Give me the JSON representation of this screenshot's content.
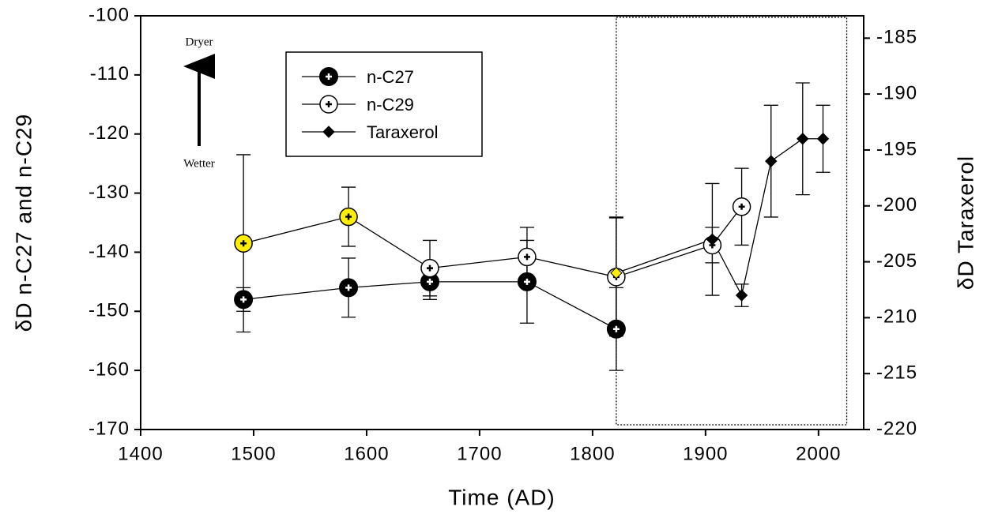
{
  "chart_data": {
    "type": "line",
    "xlabel": "Time (AD)",
    "ylabel": "δD n-C27 and n-C29",
    "y2label": "δD Taraxerol",
    "xlim": [
      1400,
      2040
    ],
    "xticks": [
      1400,
      1500,
      1600,
      1700,
      1800,
      1900,
      2000
    ],
    "ylim": [
      -170,
      -100
    ],
    "yticks": [
      -170,
      -160,
      -150,
      -140,
      -130,
      -120,
      -110,
      -100
    ],
    "y2lim": [
      -220,
      -183
    ],
    "y2ticks": [
      -220,
      -215,
      -210,
      -205,
      -200,
      -195,
      -190,
      -185
    ],
    "region": {
      "xlim": [
        1821,
        2025
      ]
    },
    "annotations": [
      "Dryer",
      "Wetter"
    ],
    "series": [
      {
        "name": "n-C27",
        "marker": "filled-circle",
        "color": "#000000",
        "x": [
          1491,
          1584,
          1656,
          1742,
          1821
        ],
        "values": [
          -148,
          -146,
          -145,
          -145,
          -153
        ],
        "errors": [
          2,
          5,
          3,
          7,
          7
        ],
        "colors": [
          "#000000",
          "#000000",
          "#000000",
          "#000000",
          "#000000"
        ]
      },
      {
        "name": "n-C29",
        "marker": "open-circle",
        "color": "#000000",
        "x": [
          1491,
          1584,
          1656,
          1742,
          1821,
          1906,
          1932
        ],
        "values": [
          -138.5,
          -134,
          -142.7,
          -140.8,
          -144.2,
          -138.8,
          -132.3
        ],
        "errors": [
          15,
          5,
          4.7,
          5,
          10,
          3,
          6.5
        ],
        "colors": [
          "#ffee00",
          "#ffee00",
          "#ffffff",
          "#ffffff",
          "#ffffff",
          "#ffffff",
          "#ffffff"
        ]
      },
      {
        "name": "Taraxerol",
        "marker": "diamond",
        "color": "#000000",
        "axis": "y2",
        "x": [
          1821,
          1906,
          1932,
          1958,
          1986,
          2004
        ],
        "values": [
          -206,
          -203,
          -208,
          -196,
          -194,
          -194
        ],
        "errors": [
          5,
          5,
          1,
          5,
          5,
          3
        ],
        "colors": [
          "#ffee00",
          "#000000",
          "#000000",
          "#000000",
          "#000000",
          "#000000"
        ]
      }
    ]
  }
}
